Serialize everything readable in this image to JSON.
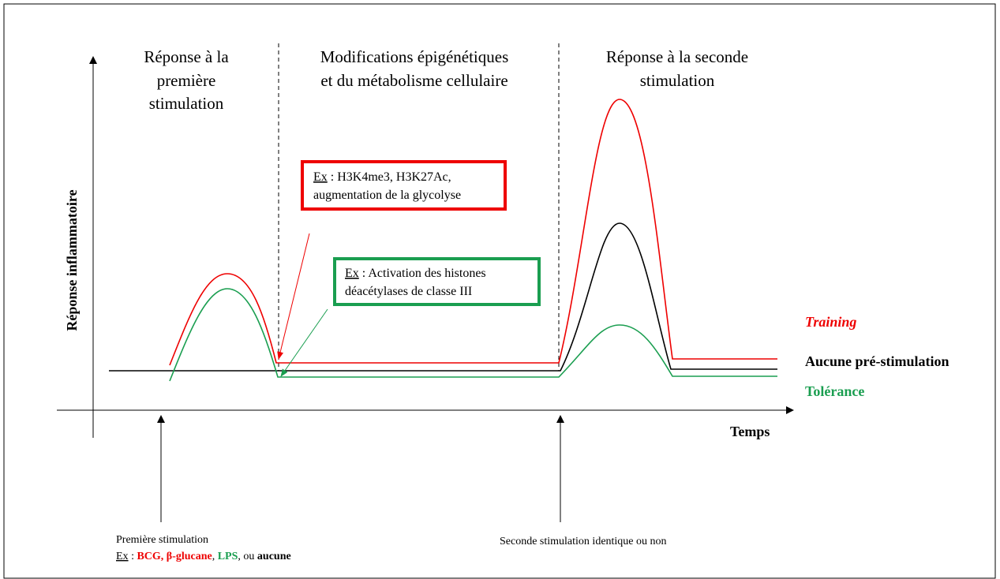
{
  "phases": [
    {
      "lines": [
        "Réponse à la",
        "première",
        "stimulation"
      ]
    },
    {
      "lines": [
        "Modifications épigénétiques",
        "et du métabolisme cellulaire"
      ]
    },
    {
      "lines": [
        "Réponse à la seconde",
        "stimulation"
      ]
    }
  ],
  "boxes": [
    {
      "ex": "Ex",
      "lines": [
        " : H3K4me3, H3K27Ac,",
        "augmentation de la glycolyse"
      ]
    },
    {
      "ex": "Ex",
      "lines": [
        " : Activation des histones",
        "déacétylases de classe III"
      ]
    }
  ],
  "y_axis_label": "Réponse inflammatoire",
  "x_axis_label": "Temps",
  "legend": [
    "Training",
    "Aucune pré-stimulation",
    "Tolérance"
  ],
  "first_stimulation": {
    "title": "Première stimulation",
    "ex": "Ex",
    "parts": [
      " : ",
      "BCG, β-glucane",
      ", ",
      "LPS",
      ", ou ",
      "aucune"
    ]
  },
  "second_stimulation": "Seconde stimulation identique ou non"
}
